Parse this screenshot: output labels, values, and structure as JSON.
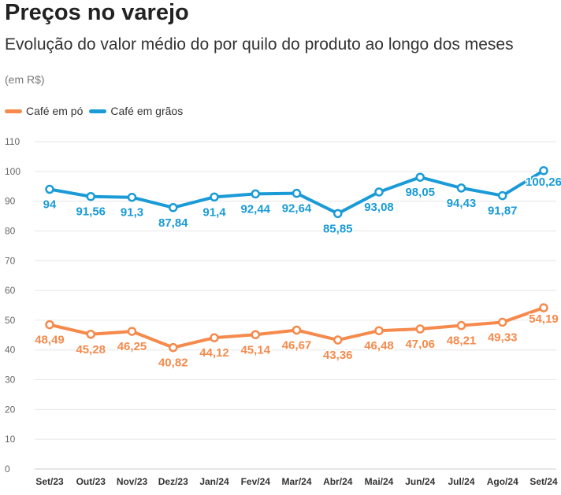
{
  "title": "Preços no varejo",
  "subtitle": "Evolução do valor médio do por quilo do produto ao longo dos meses",
  "note": "(em R$)",
  "colors": {
    "po": "#f58a4c",
    "graos": "#1a9bd7",
    "grid": "#e6e6e6",
    "axis": "#cccccc"
  },
  "chart_data": {
    "type": "line",
    "title": "Preços no varejo",
    "subtitle": "Evolução do valor médio do por quilo do produto ao longo dos meses",
    "categories": [
      "Set/23",
      "Out/23",
      "Nov/23",
      "Dez/23",
      "Jan/24",
      "Fev/24",
      "Mar/24",
      "Abr/24",
      "Mai/24",
      "Jun/24",
      "Jul/24",
      "Ago/24",
      "Set/24"
    ],
    "series": [
      {
        "name": "Café em pó",
        "color": "#f58a4c",
        "values": [
          48.49,
          45.28,
          46.25,
          40.82,
          44.12,
          45.14,
          46.67,
          43.36,
          46.48,
          47.06,
          48.21,
          49.33,
          54.19
        ],
        "labels": [
          "48,49",
          "45,28",
          "46,25",
          "40,82",
          "44,12",
          "45,14",
          "46,67",
          "43,36",
          "46,48",
          "47,06",
          "48,21",
          "49,33",
          "54,19"
        ]
      },
      {
        "name": "Café em grãos",
        "color": "#1a9bd7",
        "values": [
          94,
          91.56,
          91.3,
          87.84,
          91.4,
          92.44,
          92.64,
          85.85,
          93.08,
          98.05,
          94.43,
          91.87,
          100.26
        ],
        "labels": [
          "94",
          "91,56",
          "91,3",
          "87,84",
          "91,4",
          "92,44",
          "92,64",
          "85,85",
          "93,08",
          "98,05",
          "94,43",
          "91,87",
          "100,26"
        ]
      }
    ],
    "yticks": [
      0,
      10,
      20,
      30,
      40,
      50,
      60,
      70,
      80,
      90,
      100,
      110
    ],
    "ylim": [
      0,
      110
    ],
    "grid": true,
    "legend": "top-left"
  }
}
